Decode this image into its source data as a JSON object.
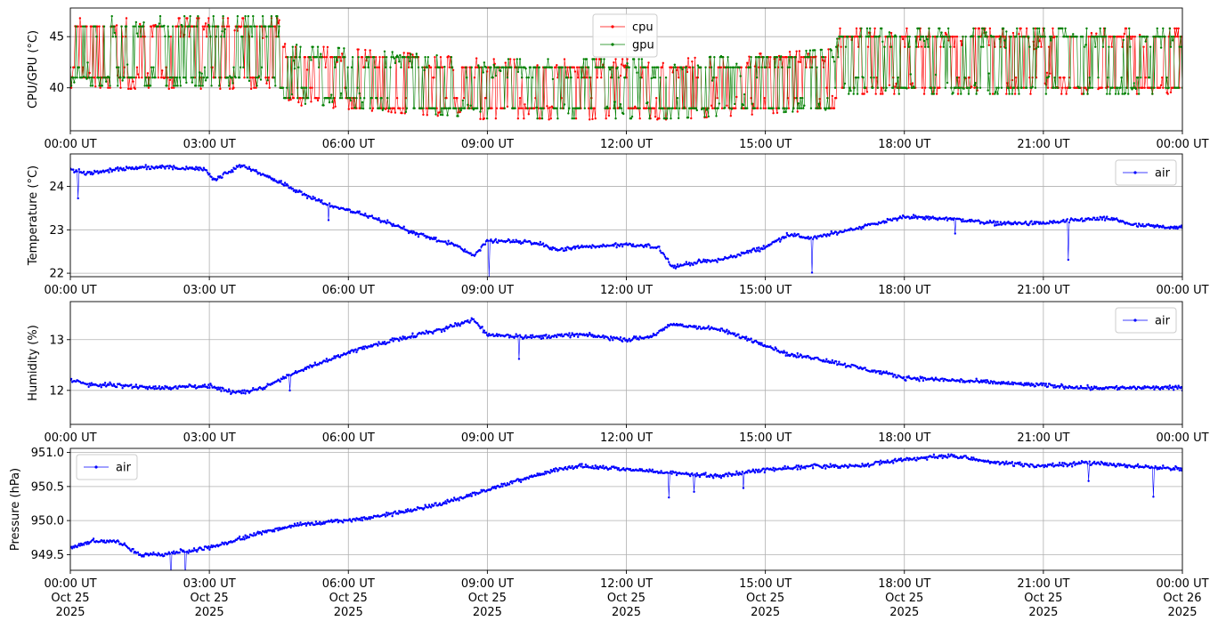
{
  "chart_data": [
    {
      "type": "line",
      "ylabel": "CPU/GPU (°C)",
      "ylim": [
        35.8,
        47.8
      ],
      "yticks": [
        40,
        45
      ],
      "xlim": [
        "2025-10-25T00:00",
        "2025-10-26T00:00"
      ],
      "xtick_labels": [
        "00:00 UT",
        "03:00 UT",
        "06:00 UT",
        "09:00 UT",
        "12:00 UT",
        "15:00 UT",
        "18:00 UT",
        "21:00 UT",
        "00:00 UT"
      ],
      "grid": true,
      "legend": "top-center",
      "series": [
        {
          "name": "cpu",
          "color": "#ff0000",
          "profile_hours": [
            0,
            4.5,
            4.6,
            9,
            13,
            16.5,
            16.6,
            24
          ],
          "low": [
            40.5,
            40.5,
            39.0,
            37.5,
            37.5,
            38.5,
            40.0,
            40.0
          ],
          "high": [
            46.0,
            46.0,
            43.5,
            42.0,
            42.0,
            43.0,
            45.0,
            45.0
          ]
        },
        {
          "name": "gpu",
          "color": "#008000",
          "profile_hours": [
            0,
            4.5,
            4.6,
            9,
            13,
            16.5,
            16.6,
            24
          ],
          "low": [
            40.8,
            40.8,
            39.2,
            37.6,
            37.6,
            38.5,
            40.0,
            40.0
          ],
          "high": [
            46.2,
            46.2,
            43.5,
            42.0,
            42.0,
            43.0,
            45.0,
            45.0
          ]
        }
      ]
    },
    {
      "type": "line",
      "ylabel": "Temperature (°C)",
      "ylim": [
        21.92,
        24.75
      ],
      "yticks": [
        22,
        23,
        24
      ],
      "xlim": [
        "2025-10-25T00:00",
        "2025-10-26T00:00"
      ],
      "xtick_labels": [
        "00:00 UT",
        "03:00 UT",
        "06:00 UT",
        "09:00 UT",
        "12:00 UT",
        "15:00 UT",
        "18:00 UT",
        "21:00 UT",
        "00:00 UT"
      ],
      "grid": true,
      "legend": "top-right",
      "series": [
        {
          "name": "air",
          "color": "#0000ff",
          "x_hours": [
            0,
            0.3,
            1,
            2,
            2.9,
            3.1,
            3.7,
            4.5,
            5.5,
            6.5,
            7.5,
            8.3,
            8.7,
            9.0,
            9.5,
            10,
            10.5,
            11,
            12,
            12.7,
            13.0,
            13.5,
            14,
            14.5,
            15.0,
            15.5,
            16,
            17,
            18,
            19,
            20,
            21,
            22,
            22.5,
            23,
            24
          ],
          "y": [
            24.4,
            24.3,
            24.4,
            24.45,
            24.4,
            24.15,
            24.5,
            24.1,
            23.6,
            23.3,
            22.9,
            22.65,
            22.4,
            22.75,
            22.75,
            22.7,
            22.55,
            22.6,
            22.65,
            22.6,
            22.15,
            22.25,
            22.3,
            22.45,
            22.6,
            22.9,
            22.8,
            23.05,
            23.3,
            23.25,
            23.15,
            23.15,
            23.25,
            23.25,
            23.1,
            23.05
          ]
        }
      ]
    },
    {
      "type": "line",
      "ylabel": "Humidity (%)",
      "ylim": [
        11.33,
        13.75
      ],
      "yticks": [
        12,
        13
      ],
      "xlim": [
        "2025-10-25T00:00",
        "2025-10-26T00:00"
      ],
      "xtick_labels": [
        "00:00 UT",
        "03:00 UT",
        "06:00 UT",
        "09:00 UT",
        "12:00 UT",
        "15:00 UT",
        "18:00 UT",
        "21:00 UT",
        "00:00 UT"
      ],
      "grid": true,
      "legend": "top-right",
      "series": [
        {
          "name": "air",
          "color": "#0000ff",
          "x_hours": [
            0,
            0.5,
            1,
            2,
            3,
            3.5,
            4,
            5,
            6,
            7,
            7.5,
            8,
            8.7,
            9.0,
            10,
            11,
            12,
            12.5,
            13,
            14,
            15,
            15.5,
            16,
            17,
            18,
            19,
            20,
            21,
            22,
            23,
            24
          ],
          "y": [
            12.2,
            12.1,
            12.1,
            12.05,
            12.1,
            11.95,
            12.0,
            12.4,
            12.75,
            13.0,
            13.1,
            13.2,
            13.4,
            13.1,
            13.05,
            13.1,
            13.0,
            13.05,
            13.3,
            13.2,
            12.9,
            12.7,
            12.65,
            12.45,
            12.25,
            12.2,
            12.15,
            12.1,
            12.05,
            12.05,
            12.05
          ]
        }
      ]
    },
    {
      "type": "line",
      "ylabel": "Pressure (hPa)",
      "ylim": [
        949.27,
        951.06
      ],
      "yticks": [
        949.5,
        950.0,
        950.5,
        951.0
      ],
      "xlim": [
        "2025-10-25T00:00",
        "2025-10-26T00:00"
      ],
      "xtick_labels": [
        "00:00 UT\nOct 25\n2025",
        "03:00 UT\nOct 25\n2025",
        "06:00 UT\nOct 25\n2025",
        "09:00 UT\nOct 25\n2025",
        "12:00 UT\nOct 25\n2025",
        "15:00 UT\nOct 25\n2025",
        "18:00 UT\nOct 25\n2025",
        "21:00 UT\nOct 25\n2025",
        "00:00 UT\nOct 26\n2025"
      ],
      "grid": true,
      "legend": "top-left",
      "series": [
        {
          "name": "air",
          "color": "#0000ff",
          "x_hours": [
            0,
            0.5,
            1,
            1.5,
            2,
            3,
            4,
            5,
            6,
            7,
            8,
            9,
            10,
            10.5,
            11,
            12,
            13,
            14,
            15,
            16,
            17,
            18,
            19,
            20,
            21,
            22,
            23,
            24
          ],
          "y": [
            949.6,
            949.7,
            949.7,
            949.5,
            949.5,
            949.6,
            949.8,
            949.95,
            950.0,
            950.1,
            950.25,
            950.45,
            950.65,
            950.75,
            950.8,
            950.75,
            950.7,
            950.65,
            950.75,
            950.8,
            950.8,
            950.9,
            950.95,
            950.85,
            950.8,
            950.85,
            950.8,
            950.75
          ]
        }
      ]
    }
  ]
}
